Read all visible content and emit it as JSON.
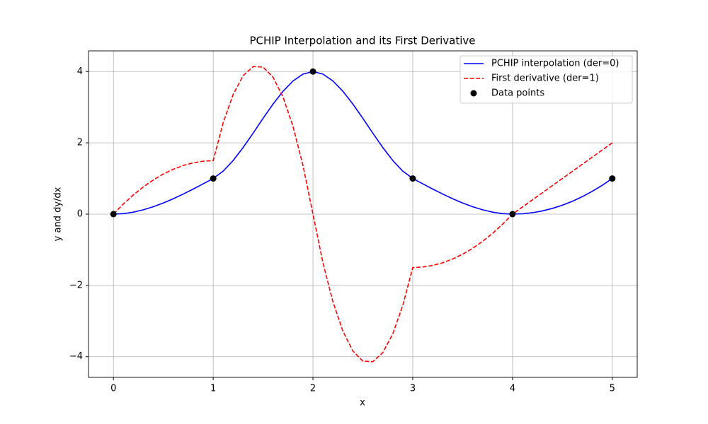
{
  "chart_data": {
    "type": "line",
    "title": "PCHIP Interpolation and its First Derivative",
    "xlabel": "x",
    "ylabel": "y and dy/dx",
    "x": [
      0,
      0.1,
      0.2,
      0.3,
      0.4,
      0.5,
      0.6,
      0.7,
      0.8,
      0.9,
      1,
      1.1,
      1.2,
      1.3,
      1.4,
      1.5,
      1.6,
      1.7,
      1.8,
      1.9,
      2,
      2.1,
      2.2,
      2.3,
      2.4,
      2.5,
      2.6,
      2.7,
      2.8,
      2.9,
      3,
      3.1,
      3.2,
      3.3,
      3.4,
      3.5,
      3.6,
      3.7,
      3.8,
      3.9,
      4,
      4.1,
      4.2,
      4.3,
      4.4,
      4.5,
      4.6,
      4.7,
      4.8,
      4.9,
      5
    ],
    "series": [
      {
        "name": "PCHIP interpolation (der=0)",
        "type": "line",
        "color": "#0000ff",
        "dash": "solid",
        "values": [
          0,
          0.0145,
          0.056,
          0.1215,
          0.208,
          0.3125,
          0.432,
          0.5635,
          0.704,
          0.8505,
          1,
          1.2055,
          1.504,
          1.8685,
          2.272,
          2.6875,
          3.088,
          3.4465,
          3.736,
          3.9295,
          4,
          3.9295,
          3.736,
          3.4465,
          3.088,
          2.6875,
          2.272,
          1.8685,
          1.504,
          1.2055,
          1,
          0.8505,
          0.704,
          0.5635,
          0.432,
          0.3125,
          0.208,
          0.1215,
          0.056,
          0.0145,
          0,
          0.01,
          0.04,
          0.09,
          0.16,
          0.25,
          0.36,
          0.49,
          0.64,
          0.81,
          1
        ]
      },
      {
        "name": "First derivative (der=1)",
        "type": "line",
        "color": "#ff0000",
        "dash": "dashed",
        "values": [
          0,
          0.285,
          0.54,
          0.765,
          0.96,
          1.125,
          1.26,
          1.365,
          1.44,
          1.485,
          1.5,
          2.565,
          3.36,
          3.885,
          4.14,
          4.125,
          3.84,
          3.285,
          2.46,
          1.365,
          0,
          -1.365,
          -2.46,
          -3.285,
          -3.84,
          -4.125,
          -4.14,
          -3.885,
          -3.36,
          -2.565,
          -1.5,
          -1.485,
          -1.44,
          -1.365,
          -1.26,
          -1.125,
          -0.96,
          -0.765,
          -0.54,
          -0.285,
          0,
          0.2,
          0.4,
          0.6,
          0.8,
          1,
          1.2,
          1.4,
          1.6,
          1.8,
          2
        ]
      },
      {
        "name": "Data points",
        "type": "scatter",
        "color": "#000000",
        "x": [
          0,
          1,
          2,
          3,
          4,
          5
        ],
        "values": [
          0,
          1,
          4,
          1,
          0,
          1
        ]
      }
    ],
    "xlim": [
      -0.25,
      5.25
    ],
    "ylim": [
      -4.58,
      4.58
    ],
    "xticks": [
      0,
      1,
      2,
      3,
      4,
      5
    ],
    "yticks": [
      {
        "value": -4,
        "label": "−4"
      },
      {
        "value": -2,
        "label": "−2"
      },
      0,
      2,
      4
    ],
    "grid": true,
    "legend": "upper right"
  }
}
